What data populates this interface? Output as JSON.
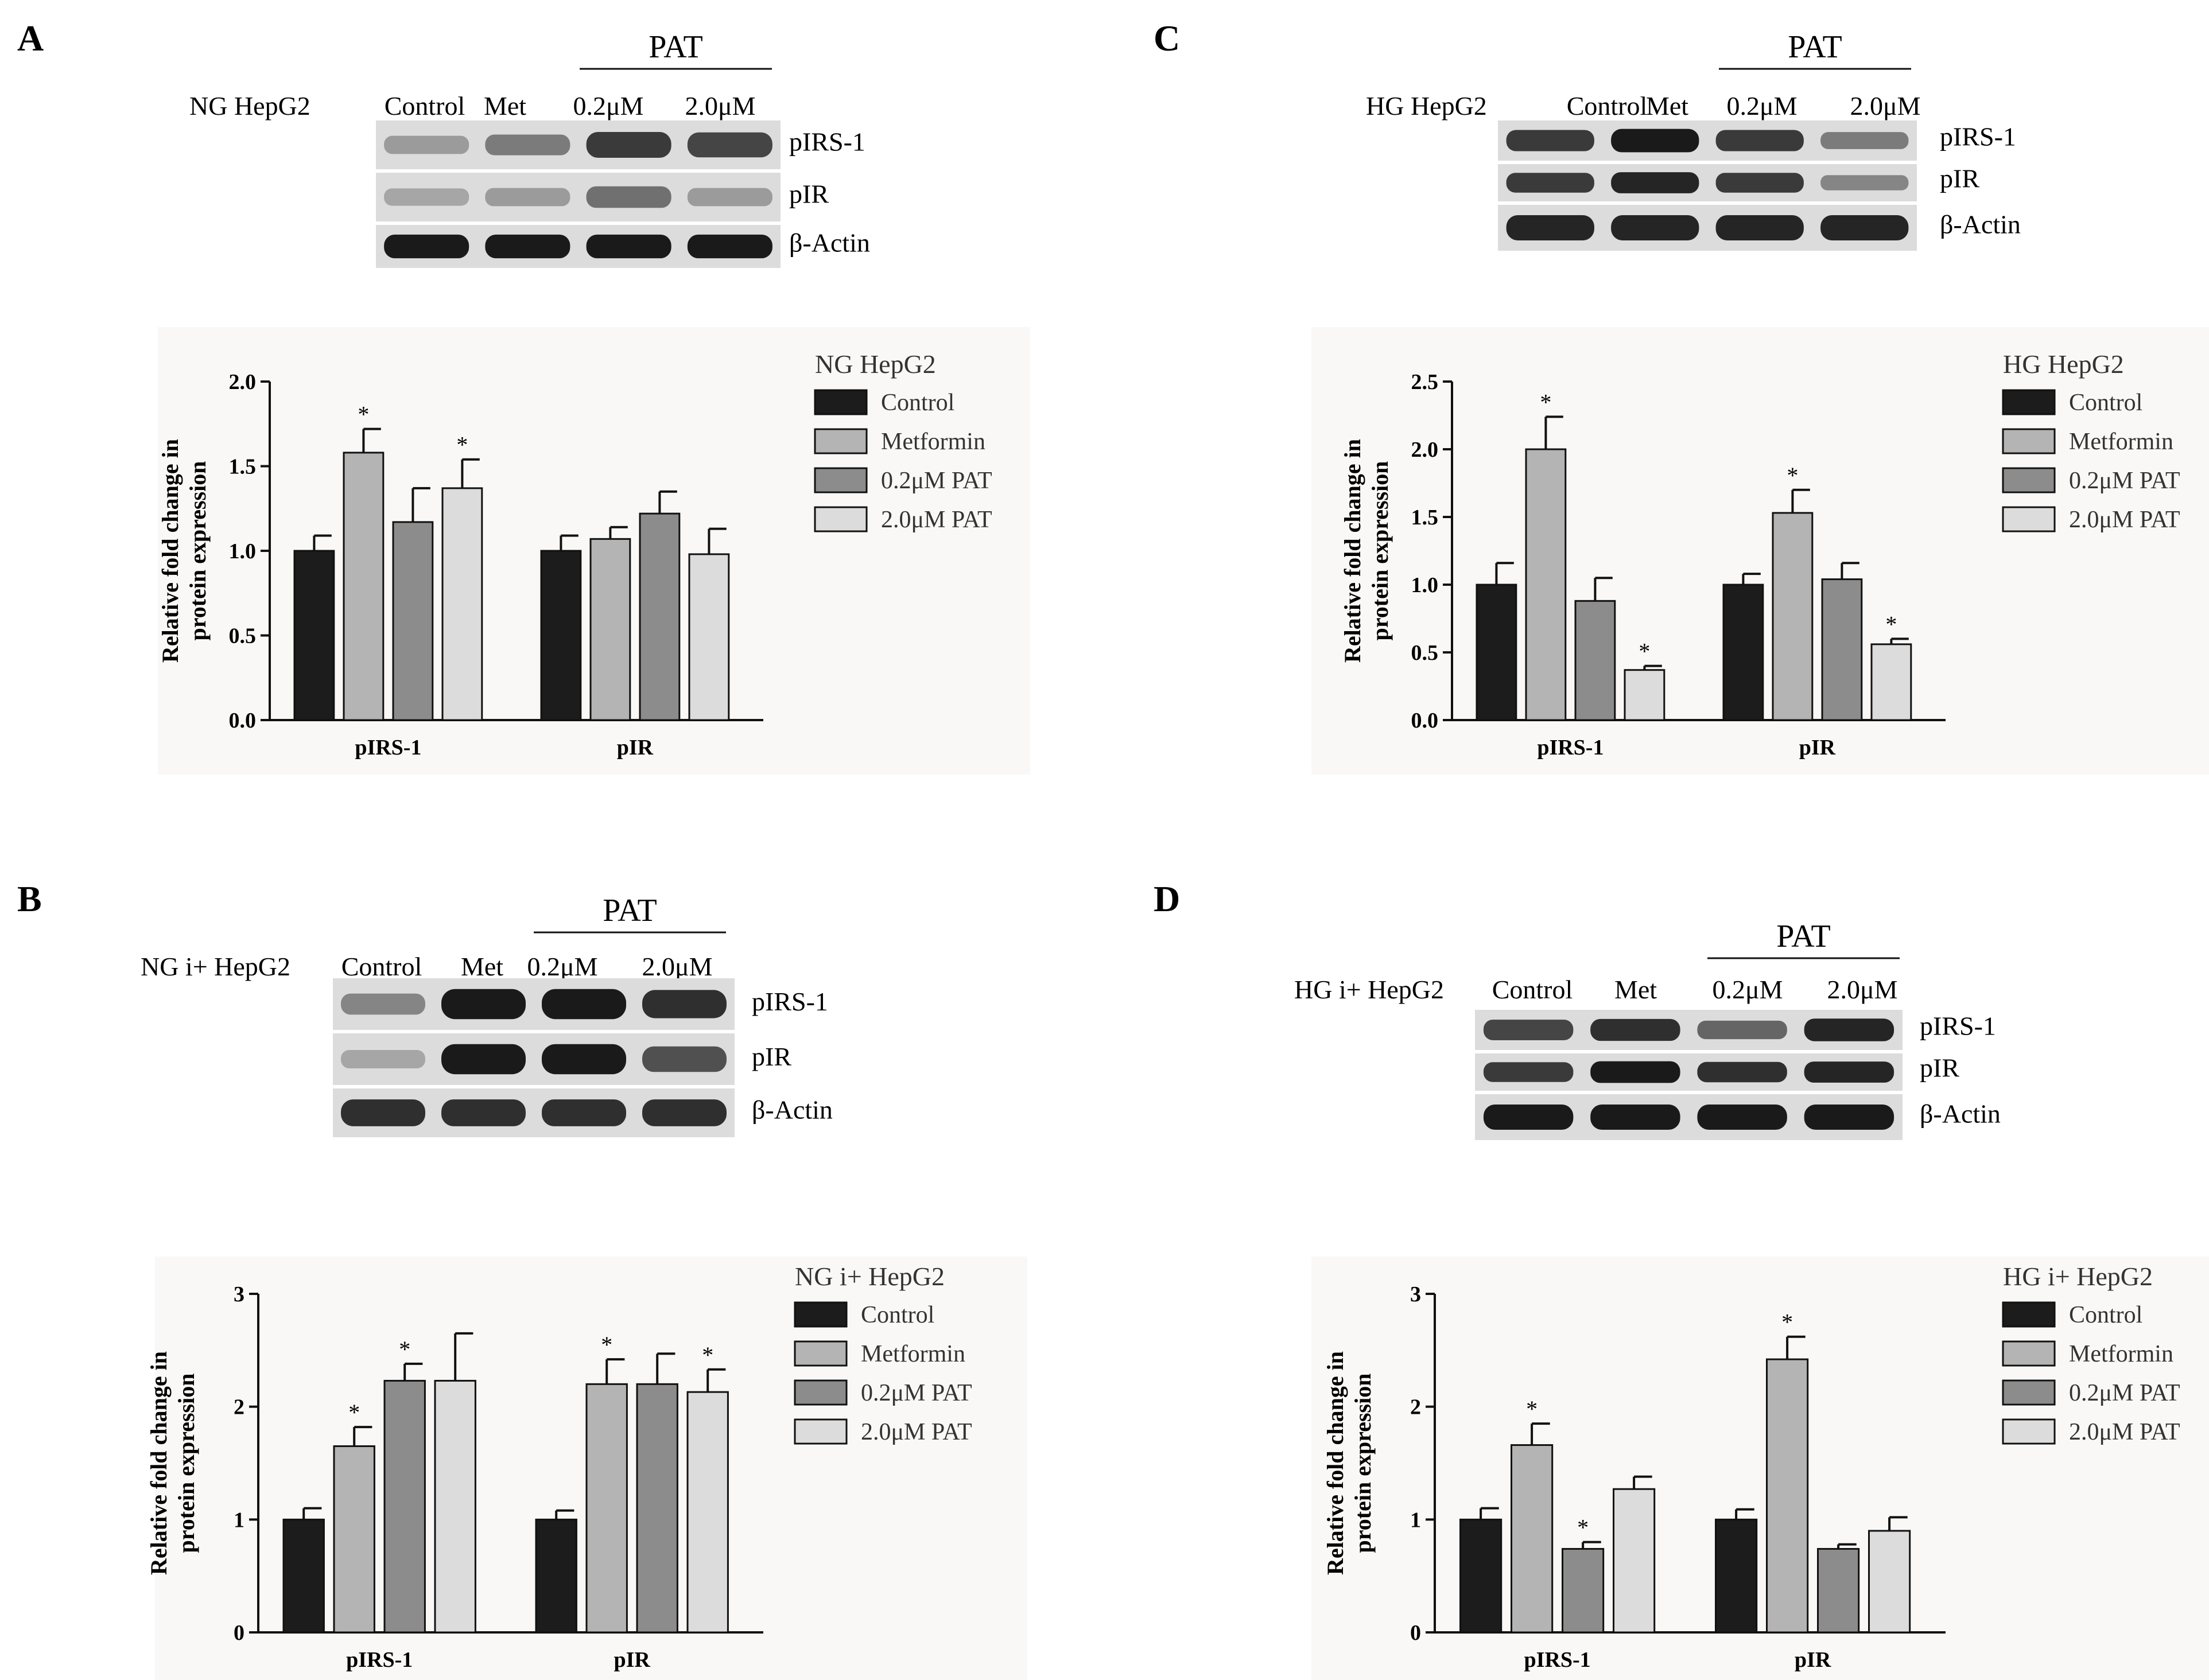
{
  "figure": {
    "panels": [
      {
        "letter": "A",
        "blot": {
          "cell_label": "NG HepG2",
          "group_label": "PAT",
          "lanes": [
            "Control",
            "Met",
            "0.2μM",
            "2.0μM"
          ],
          "bands": [
            "pIRS-1",
            "pIR",
            "β-Actin"
          ],
          "intensity": {
            "pIRS-1": [
              0.35,
              0.5,
              0.8,
              0.75
            ],
            "pIR": [
              0.3,
              0.35,
              0.55,
              0.35
            ],
            "β-Actin": [
              0.95,
              0.95,
              0.95,
              0.95
            ]
          }
        },
        "legend": {
          "title": "NG HepG2",
          "entries": [
            "Control",
            "Metformin",
            "0.2μM PAT",
            "2.0μM PAT"
          ],
          "colors": [
            "#1c1c1c",
            "#b4b4b4",
            "#8c8c8c",
            "#dcdcdc"
          ]
        }
      },
      {
        "letter": "B",
        "blot": {
          "cell_label": "NG i+ HepG2",
          "group_label": "PAT",
          "lanes": [
            "Control",
            "Met",
            "0.2μM",
            "2.0μM"
          ],
          "bands": [
            "pIRS-1",
            "pIR",
            "β-Actin"
          ],
          "intensity": {
            "pIRS-1": [
              0.45,
              0.95,
              0.95,
              0.85
            ],
            "pIR": [
              0.3,
              0.95,
              0.95,
              0.7
            ],
            "β-Actin": [
              0.85,
              0.85,
              0.85,
              0.85
            ]
          }
        },
        "legend": {
          "title": "NG i+ HepG2",
          "entries": [
            "Control",
            "Metformin",
            "0.2μM PAT",
            "2.0μM PAT"
          ],
          "colors": [
            "#1c1c1c",
            "#b4b4b4",
            "#8c8c8c",
            "#dcdcdc"
          ]
        }
      },
      {
        "letter": "C",
        "blot": {
          "cell_label": "HG HepG2",
          "group_label": "PAT",
          "lanes": [
            "Control",
            "Met",
            "0.2μM",
            "2.0μM"
          ],
          "bands": [
            "pIRS-1",
            "pIR",
            "β-Actin"
          ],
          "intensity": {
            "pIRS-1": [
              0.8,
              0.95,
              0.8,
              0.5
            ],
            "pIR": [
              0.8,
              0.9,
              0.8,
              0.45
            ],
            "β-Actin": [
              0.9,
              0.9,
              0.9,
              0.9
            ]
          }
        },
        "legend": {
          "title": "HG HepG2",
          "entries": [
            "Control",
            "Metformin",
            "0.2μM PAT",
            "2.0μM PAT"
          ],
          "colors": [
            "#1c1c1c",
            "#b4b4b4",
            "#8c8c8c",
            "#dcdcdc"
          ]
        }
      },
      {
        "letter": "D",
        "blot": {
          "cell_label": "HG i+ HepG2",
          "group_label": "PAT",
          "lanes": [
            "Control",
            "Met",
            "0.2μM",
            "2.0μM"
          ],
          "bands": [
            "pIRS-1",
            "pIR",
            "β-Actin"
          ],
          "intensity": {
            "pIRS-1": [
              0.75,
              0.85,
              0.6,
              0.9
            ],
            "pIR": [
              0.8,
              0.95,
              0.85,
              0.9
            ],
            "β-Actin": [
              0.95,
              0.95,
              0.95,
              0.95
            ]
          }
        },
        "legend": {
          "title": "HG i+ HepG2",
          "entries": [
            "Control",
            "Metformin",
            "0.2μM PAT",
            "2.0μM PAT"
          ],
          "colors": [
            "#1c1c1c",
            "#b4b4b4",
            "#8c8c8c",
            "#dcdcdc"
          ]
        }
      }
    ]
  },
  "chart_data": [
    {
      "panel": "A",
      "type": "bar",
      "title": "",
      "xlabel": "",
      "ylabel": "Relative fold change in protein expression",
      "ylim": [
        0,
        2.0
      ],
      "yticks": [
        "0.0",
        "0.5",
        "1.0",
        "1.5",
        "2.0"
      ],
      "categories": [
        "pIRS-1",
        "pIR"
      ],
      "series": [
        {
          "name": "Control",
          "values": [
            1.0,
            1.0
          ],
          "errors": [
            0.09,
            0.09
          ],
          "significant": [
            false,
            false
          ]
        },
        {
          "name": "Metformin",
          "values": [
            1.58,
            1.07
          ],
          "errors": [
            0.14,
            0.07
          ],
          "significant": [
            true,
            false
          ]
        },
        {
          "name": "0.2μM PAT",
          "values": [
            1.17,
            1.22
          ],
          "errors": [
            0.2,
            0.13
          ],
          "significant": [
            false,
            false
          ]
        },
        {
          "name": "2.0μM PAT",
          "values": [
            1.37,
            0.98
          ],
          "errors": [
            0.17,
            0.15
          ],
          "significant": [
            true,
            false
          ]
        }
      ],
      "significance_marker": "*",
      "grid": false,
      "legend_position": "right"
    },
    {
      "panel": "B",
      "type": "bar",
      "title": "",
      "xlabel": "",
      "ylabel": "Relative fold change in protein expression",
      "ylim": [
        0,
        3
      ],
      "yticks": [
        "0",
        "1",
        "2",
        "3"
      ],
      "categories": [
        "pIRS-1",
        "pIR"
      ],
      "series": [
        {
          "name": "Control",
          "values": [
            1.0,
            1.0
          ],
          "errors": [
            0.1,
            0.08
          ],
          "significant": [
            false,
            false
          ]
        },
        {
          "name": "Metformin",
          "values": [
            1.65,
            2.2
          ],
          "errors": [
            0.17,
            0.22
          ],
          "significant": [
            true,
            true
          ]
        },
        {
          "name": "0.2μM PAT",
          "values": [
            2.23,
            2.2
          ],
          "errors": [
            0.15,
            0.27
          ],
          "significant": [
            true,
            false
          ]
        },
        {
          "name": "2.0μM PAT",
          "values": [
            2.23,
            2.13
          ],
          "errors": [
            0.42,
            0.2
          ],
          "significant": [
            false,
            true
          ]
        }
      ],
      "significance_marker": "*",
      "grid": false,
      "legend_position": "right"
    },
    {
      "panel": "C",
      "type": "bar",
      "title": "",
      "xlabel": "",
      "ylabel": "Relative fold change in protein expression",
      "ylim": [
        0,
        2.5
      ],
      "yticks": [
        "0.0",
        "0.5",
        "1.0",
        "1.5",
        "2.0",
        "2.5"
      ],
      "categories": [
        "pIRS-1",
        "pIR"
      ],
      "series": [
        {
          "name": "Control",
          "values": [
            1.0,
            1.0
          ],
          "errors": [
            0.16,
            0.08
          ],
          "significant": [
            false,
            false
          ]
        },
        {
          "name": "Metformin",
          "values": [
            2.0,
            1.53
          ],
          "errors": [
            0.24,
            0.17
          ],
          "significant": [
            true,
            true
          ]
        },
        {
          "name": "0.2μM PAT",
          "values": [
            0.88,
            1.04
          ],
          "errors": [
            0.17,
            0.12
          ],
          "significant": [
            false,
            false
          ]
        },
        {
          "name": "2.0μM PAT",
          "values": [
            0.37,
            0.56
          ],
          "errors": [
            0.03,
            0.04
          ],
          "significant": [
            true,
            true
          ]
        }
      ],
      "significance_marker": "*",
      "grid": false,
      "legend_position": "right"
    },
    {
      "panel": "D",
      "type": "bar",
      "title": "",
      "xlabel": "",
      "ylabel": "Relative fold change in protein expression",
      "ylim": [
        0,
        3
      ],
      "yticks": [
        "0",
        "1",
        "2",
        "3"
      ],
      "categories": [
        "pIRS-1",
        "pIR"
      ],
      "series": [
        {
          "name": "Control",
          "values": [
            1.0,
            1.0
          ],
          "errors": [
            0.1,
            0.09
          ],
          "significant": [
            false,
            false
          ]
        },
        {
          "name": "Metformin",
          "values": [
            1.66,
            2.42
          ],
          "errors": [
            0.19,
            0.2
          ],
          "significant": [
            true,
            true
          ]
        },
        {
          "name": "0.2μM PAT",
          "values": [
            0.74,
            0.74
          ],
          "errors": [
            0.06,
            0.04
          ],
          "significant": [
            true,
            false
          ]
        },
        {
          "name": "2.0μM PAT",
          "values": [
            1.27,
            0.9
          ],
          "errors": [
            0.11,
            0.12
          ],
          "significant": [
            false,
            false
          ]
        }
      ],
      "significance_marker": "*",
      "grid": false,
      "legend_position": "right"
    }
  ]
}
